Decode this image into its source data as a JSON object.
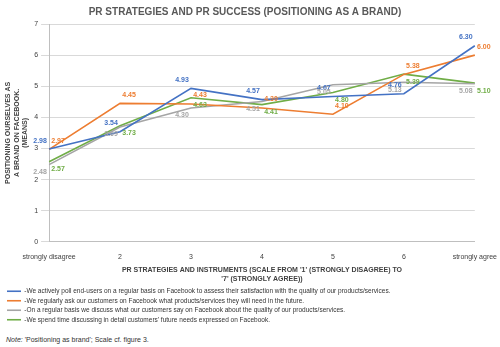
{
  "chart_data": {
    "type": "line",
    "title": "PR STRATEGIES AND PR SUCCESS (POSITIONING AS A BRAND)",
    "x_label": "PR STRATEGIES AND INSTRUMENTS (SCALE FROM '1' (STRONGLY DISAGREE) TO '7' (STRONGLY AGREE))",
    "y_label": "POSITIONING OURSELVES AS A BRAND ON FACEBOOK. (MEANS)",
    "note": "Note: 'Positioning as brand'; Scale cf. figure 3.",
    "categories": [
      "strongly disagree",
      "2",
      "3",
      "4",
      "5",
      "6",
      "strongly agree"
    ],
    "ylim": [
      0,
      7
    ],
    "yticks": [
      0,
      1,
      2,
      3,
      4,
      5,
      6,
      7
    ],
    "grid": true,
    "legend": "bottom",
    "data_labels": true,
    "series": [
      {
        "name": "-We actively poll end-users on a regular basis on Facebook to assess their satisfaction with the quality of our products/services.",
        "color": "#4472c4",
        "values": [
          2.98,
          3.54,
          4.93,
          4.57,
          4.67,
          4.76,
          6.3
        ],
        "value_labels": [
          "2.98",
          "3.54",
          "4.93",
          "4.57",
          "4.67",
          "4.76",
          "6.30"
        ]
      },
      {
        "name": "-We regularly ask our customers on Facebook what products/services they will need in the future.",
        "color": "#ed7d31",
        "values": [
          2.97,
          4.45,
          4.43,
          4.3,
          4.1,
          5.38,
          6.0
        ],
        "value_labels": [
          "2.97",
          "4.45",
          "4.43",
          "4.30",
          "4.10",
          "5.38",
          "6.00"
        ]
      },
      {
        "name": "-On a regular basis we discuss what our customers say on Facebook about the quality of our products/services.",
        "color": "#a5a5a5",
        "values": [
          2.48,
          3.69,
          4.3,
          4.51,
          5.05,
          5.13,
          5.08
        ],
        "value_labels": [
          "2.48",
          "3.69",
          "4.30",
          "4.51",
          "5.05",
          "5.13",
          "5.08"
        ]
      },
      {
        "name": "-We spend time discussing in detail customers' future needs expressed on Facebook.",
        "color": "#70ad47",
        "values": [
          2.57,
          3.73,
          4.63,
          4.41,
          4.8,
          5.39,
          5.1
        ],
        "value_labels": [
          "2.57",
          "3.73",
          "4.63",
          "4.41",
          "4.80",
          "5.39",
          "5.10"
        ]
      }
    ]
  }
}
